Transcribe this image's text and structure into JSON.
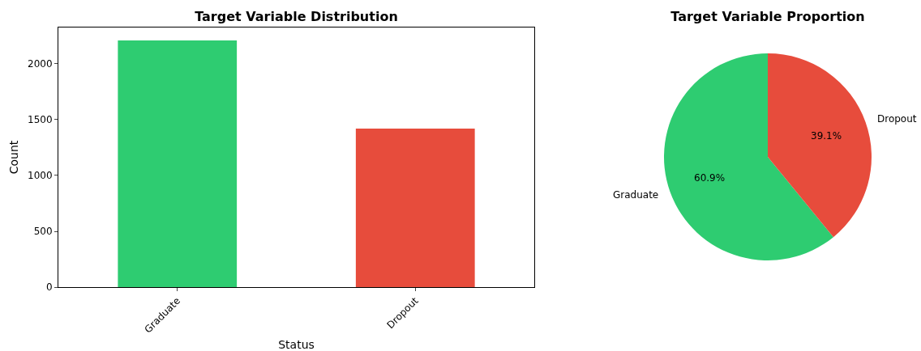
{
  "chart_data": [
    {
      "type": "bar",
      "title": "Target Variable Distribution",
      "xlabel": "Status",
      "ylabel": "Count",
      "categories": [
        "Graduate",
        "Dropout"
      ],
      "values": [
        2210,
        1420
      ],
      "colors": [
        "#2ecc71",
        "#e74c3c"
      ],
      "ylim": [
        0,
        2326
      ],
      "yticks": [
        0,
        500,
        1000,
        1500,
        2000
      ],
      "grid": false,
      "legend": false
    },
    {
      "type": "pie",
      "title": "Target Variable Proportion",
      "categories": [
        "Graduate",
        "Dropout"
      ],
      "values": [
        60.9,
        39.1
      ],
      "colors": [
        "#2ecc71",
        "#e74c3c"
      ],
      "value_labels": [
        "60.9%",
        "39.1%"
      ],
      "legend": false
    }
  ]
}
